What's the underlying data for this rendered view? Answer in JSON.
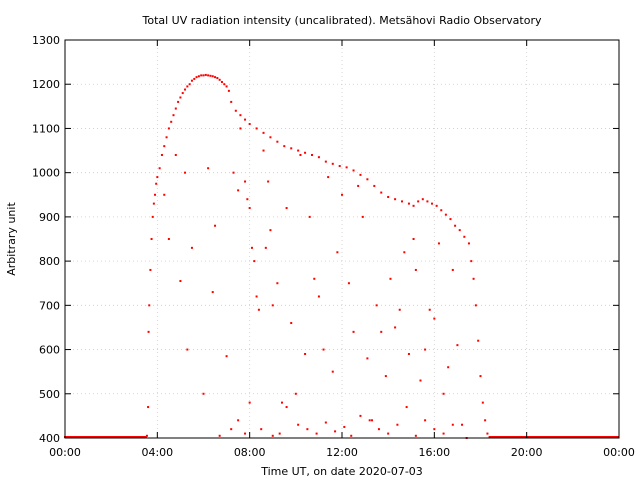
{
  "chart_data": {
    "type": "scatter",
    "title": "Total UV radiation intensity (uncalibrated). Metsähovi Radio Observatory",
    "xlabel": "Time UT, on date 2020-07-03",
    "ylabel": "Arbitrary unit",
    "xlim": [
      0,
      24
    ],
    "ylim": [
      400,
      1300
    ],
    "x_ticks": [
      0,
      4,
      8,
      12,
      16,
      20,
      24
    ],
    "x_tick_labels": [
      "00:00",
      "04:00",
      "08:00",
      "12:00",
      "16:00",
      "20:00",
      "00:00"
    ],
    "y_ticks": [
      400,
      500,
      600,
      700,
      800,
      900,
      1000,
      1100,
      1200,
      1300
    ],
    "grid": true,
    "point_color": "#ff0000",
    "series": [
      {
        "values": [
          [
            3.55,
            405
          ],
          [
            3.6,
            470
          ],
          [
            3.62,
            640
          ],
          [
            3.65,
            700
          ],
          [
            3.7,
            780
          ],
          [
            3.75,
            850
          ],
          [
            3.8,
            900
          ],
          [
            3.85,
            930
          ],
          [
            3.9,
            950
          ],
          [
            3.95,
            975
          ],
          [
            4.0,
            990
          ],
          [
            4.1,
            1010
          ],
          [
            4.2,
            1040
          ],
          [
            4.3,
            1060
          ],
          [
            4.4,
            1080
          ],
          [
            4.5,
            1100
          ],
          [
            4.6,
            1115
          ],
          [
            4.7,
            1130
          ],
          [
            4.8,
            1145
          ],
          [
            4.9,
            1160
          ],
          [
            5.0,
            1170
          ],
          [
            5.1,
            1180
          ],
          [
            5.2,
            1188
          ],
          [
            5.3,
            1195
          ],
          [
            5.4,
            1200
          ],
          [
            5.5,
            1208
          ],
          [
            5.6,
            1212
          ],
          [
            5.7,
            1216
          ],
          [
            5.8,
            1218
          ],
          [
            5.9,
            1220
          ],
          [
            6.0,
            1220
          ],
          [
            6.1,
            1221
          ],
          [
            6.2,
            1220
          ],
          [
            6.3,
            1219
          ],
          [
            6.4,
            1218
          ],
          [
            6.5,
            1216
          ],
          [
            6.6,
            1214
          ],
          [
            6.7,
            1210
          ],
          [
            6.8,
            1205
          ],
          [
            6.9,
            1200
          ],
          [
            7.0,
            1195
          ],
          [
            7.1,
            1185
          ],
          [
            7.2,
            1160
          ],
          [
            7.4,
            1140
          ],
          [
            7.6,
            1130
          ],
          [
            7.8,
            1120
          ],
          [
            8.0,
            1110
          ],
          [
            8.3,
            1100
          ],
          [
            8.6,
            1090
          ],
          [
            8.9,
            1080
          ],
          [
            9.2,
            1070
          ],
          [
            9.5,
            1060
          ],
          [
            9.8,
            1055
          ],
          [
            10.1,
            1050
          ],
          [
            10.4,
            1045
          ],
          [
            10.7,
            1040
          ],
          [
            11.0,
            1035
          ],
          [
            11.3,
            1025
          ],
          [
            11.6,
            1020
          ],
          [
            11.9,
            1015
          ],
          [
            12.2,
            1012
          ],
          [
            12.5,
            1005
          ],
          [
            12.8,
            995
          ],
          [
            13.1,
            985
          ],
          [
            13.4,
            970
          ],
          [
            13.7,
            955
          ],
          [
            14.0,
            945
          ],
          [
            14.3,
            940
          ],
          [
            14.6,
            935
          ],
          [
            14.9,
            930
          ],
          [
            15.1,
            925
          ],
          [
            15.3,
            935
          ],
          [
            15.5,
            940
          ],
          [
            15.7,
            935
          ],
          [
            15.9,
            930
          ],
          [
            16.1,
            925
          ],
          [
            16.3,
            915
          ],
          [
            16.5,
            905
          ],
          [
            16.7,
            895
          ],
          [
            16.9,
            880
          ],
          [
            17.1,
            870
          ],
          [
            17.3,
            855
          ],
          [
            17.5,
            840
          ],
          [
            17.6,
            800
          ],
          [
            17.7,
            760
          ],
          [
            17.8,
            700
          ],
          [
            17.9,
            620
          ],
          [
            18.0,
            540
          ],
          [
            18.1,
            480
          ],
          [
            18.2,
            440
          ],
          [
            18.3,
            410
          ],
          [
            18.4,
            402
          ],
          [
            4.8,
            1040
          ],
          [
            5.2,
            1000
          ],
          [
            5.5,
            830
          ],
          [
            4.5,
            850
          ],
          [
            4.3,
            950
          ],
          [
            5.0,
            755
          ],
          [
            5.3,
            600
          ],
          [
            6.0,
            500
          ],
          [
            6.2,
            1010
          ],
          [
            6.5,
            880
          ],
          [
            6.4,
            730
          ],
          [
            6.7,
            405
          ],
          [
            7.0,
            585
          ],
          [
            7.3,
            1000
          ],
          [
            7.5,
            960
          ],
          [
            7.6,
            1100
          ],
          [
            7.8,
            980
          ],
          [
            7.9,
            940
          ],
          [
            8.0,
            920
          ],
          [
            8.1,
            830
          ],
          [
            8.2,
            800
          ],
          [
            8.3,
            720
          ],
          [
            8.4,
            690
          ],
          [
            8.6,
            1050
          ],
          [
            8.7,
            830
          ],
          [
            8.8,
            980
          ],
          [
            8.9,
            870
          ],
          [
            9.0,
            700
          ],
          [
            9.2,
            750
          ],
          [
            9.4,
            480
          ],
          [
            9.6,
            920
          ],
          [
            9.8,
            660
          ],
          [
            10.0,
            500
          ],
          [
            10.2,
            1040
          ],
          [
            10.4,
            590
          ],
          [
            10.6,
            900
          ],
          [
            10.8,
            760
          ],
          [
            11.0,
            720
          ],
          [
            11.2,
            600
          ],
          [
            11.4,
            990
          ],
          [
            11.6,
            550
          ],
          [
            11.8,
            820
          ],
          [
            12.0,
            950
          ],
          [
            12.3,
            750
          ],
          [
            12.5,
            640
          ],
          [
            12.7,
            970
          ],
          [
            12.9,
            900
          ],
          [
            13.1,
            580
          ],
          [
            13.3,
            440
          ],
          [
            13.5,
            700
          ],
          [
            13.7,
            640
          ],
          [
            13.9,
            540
          ],
          [
            14.1,
            760
          ],
          [
            14.3,
            650
          ],
          [
            14.5,
            690
          ],
          [
            14.7,
            820
          ],
          [
            14.9,
            590
          ],
          [
            15.1,
            850
          ],
          [
            15.2,
            780
          ],
          [
            15.4,
            530
          ],
          [
            15.6,
            600
          ],
          [
            15.8,
            690
          ],
          [
            16.0,
            670
          ],
          [
            16.2,
            840
          ],
          [
            16.4,
            500
          ],
          [
            16.6,
            560
          ],
          [
            16.8,
            780
          ],
          [
            17.0,
            610
          ],
          [
            17.2,
            430
          ],
          [
            17.4,
            400
          ],
          [
            7.2,
            420
          ],
          [
            7.5,
            440
          ],
          [
            7.8,
            410
          ],
          [
            8.0,
            480
          ],
          [
            8.5,
            420
          ],
          [
            9.0,
            405
          ],
          [
            9.3,
            410
          ],
          [
            9.6,
            470
          ],
          [
            10.1,
            430
          ],
          [
            10.5,
            420
          ],
          [
            10.9,
            410
          ],
          [
            11.3,
            435
          ],
          [
            11.7,
            415
          ],
          [
            12.1,
            425
          ],
          [
            12.4,
            405
          ],
          [
            12.8,
            450
          ],
          [
            13.2,
            440
          ],
          [
            13.6,
            420
          ],
          [
            14.0,
            410
          ],
          [
            14.4,
            430
          ],
          [
            14.8,
            470
          ],
          [
            15.2,
            405
          ],
          [
            15.6,
            440
          ],
          [
            16.0,
            420
          ],
          [
            16.4,
            410
          ],
          [
            16.8,
            430
          ]
        ]
      }
    ]
  }
}
